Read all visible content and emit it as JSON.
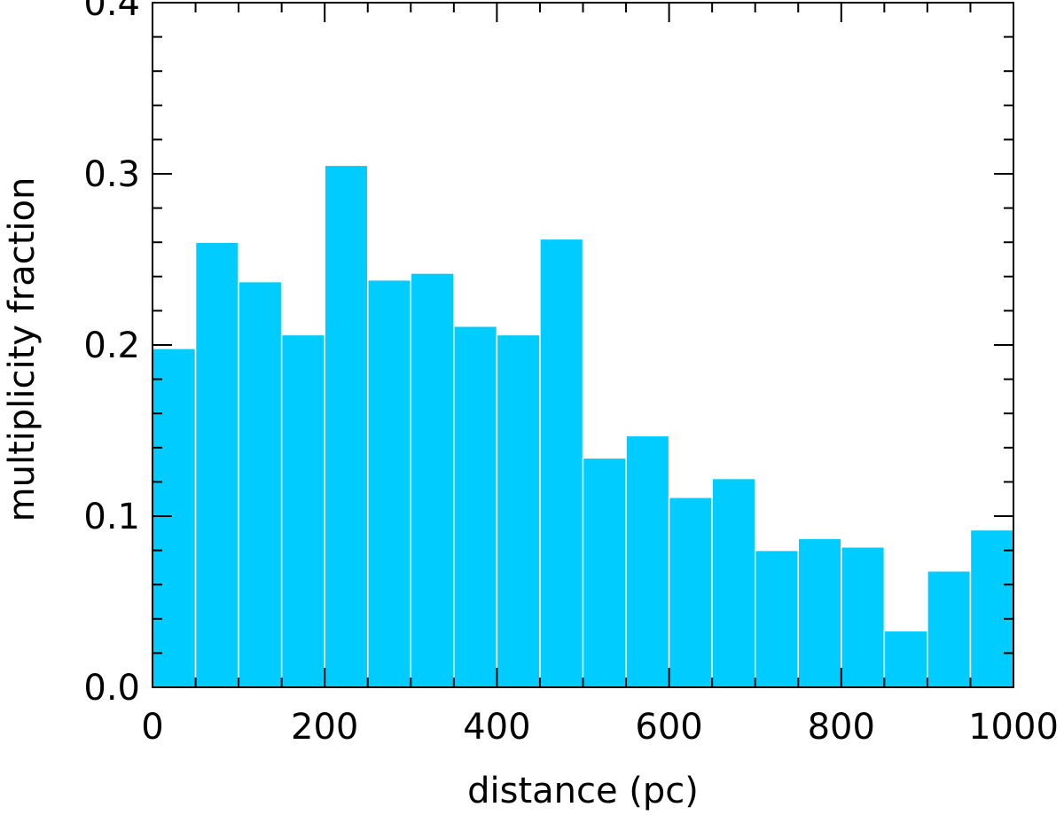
{
  "chart_data": {
    "type": "bar",
    "xlabel": "distance (pc)",
    "ylabel": "multiplicity fraction",
    "xlim": [
      0,
      1000
    ],
    "ylim": [
      0.0,
      0.4
    ],
    "bin_width": 50,
    "x": [
      0,
      50,
      100,
      150,
      200,
      250,
      300,
      350,
      400,
      450,
      500,
      550,
      600,
      650,
      700,
      750,
      800,
      850,
      900,
      950
    ],
    "values": [
      0.198,
      0.26,
      0.237,
      0.206,
      0.305,
      0.238,
      0.242,
      0.211,
      0.206,
      0.262,
      0.134,
      0.147,
      0.111,
      0.122,
      0.08,
      0.087,
      0.082,
      0.033,
      0.068,
      0.092
    ],
    "xticks": [
      "0",
      "200",
      "400",
      "600",
      "800",
      "1000"
    ],
    "yticks": [
      "0.0",
      "0.1",
      "0.2",
      "0.3",
      "0.4"
    ],
    "bar_color": "#00ccff",
    "grid": false,
    "legend": false
  }
}
